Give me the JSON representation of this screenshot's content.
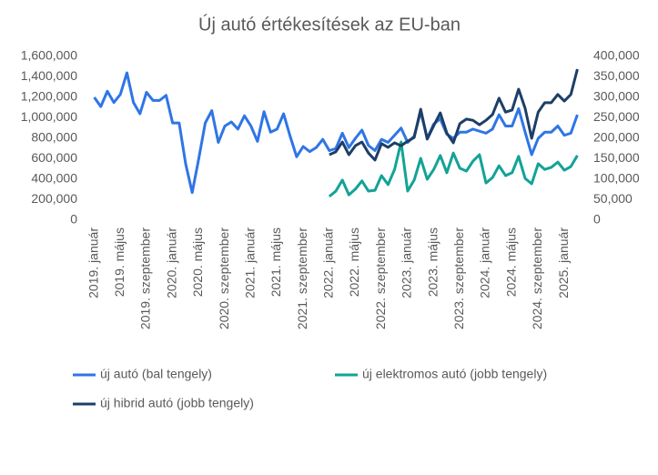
{
  "chart_data": {
    "type": "line",
    "title": "Új autó értékesítések az EU-ban",
    "categories": [
      "2019. január",
      null,
      null,
      null,
      "2019. május",
      null,
      null,
      null,
      "2019. szeptember",
      null,
      null,
      null,
      "2020. január",
      null,
      null,
      null,
      "2020. május",
      null,
      null,
      null,
      "2020. szeptember",
      null,
      null,
      null,
      "2021. január",
      null,
      null,
      null,
      "2021. május",
      null,
      null,
      null,
      "2021. szeptember",
      null,
      null,
      null,
      "2022. január",
      null,
      null,
      null,
      "2022. május",
      null,
      null,
      null,
      "2022. szeptember",
      null,
      null,
      null,
      "2023. január",
      null,
      null,
      null,
      "2023. május",
      null,
      null,
      null,
      "2023. szeptember",
      null,
      null,
      null,
      "2024. január",
      null,
      null,
      null,
      "2024. május",
      null,
      null,
      null,
      "2024. szeptember",
      null,
      null,
      null,
      "2025. január",
      null,
      null
    ],
    "series": [
      {
        "name": "új autó (bal tengely)",
        "color": "#2f75e6",
        "axis": "y",
        "values": [
          1200000,
          1110000,
          1260000,
          1150000,
          1230000,
          1440000,
          1150000,
          1040000,
          1250000,
          1170000,
          1170000,
          1220000,
          950000,
          950000,
          550000,
          270000,
          600000,
          950000,
          1070000,
          760000,
          920000,
          960000,
          890000,
          1020000,
          920000,
          770000,
          1060000,
          860000,
          890000,
          1040000,
          820000,
          620000,
          720000,
          670000,
          710000,
          790000,
          680000,
          700000,
          850000,
          710000,
          800000,
          880000,
          730000,
          680000,
          790000,
          760000,
          830000,
          900000,
          760000,
          820000,
          1060000,
          800000,
          940000,
          990000,
          840000,
          800000,
          860000,
          860000,
          890000,
          870000,
          850000,
          890000,
          1030000,
          920000,
          920000,
          1090000,
          860000,
          640000,
          800000,
          860000,
          860000,
          920000,
          830000,
          850000,
          1030000
        ]
      },
      {
        "name": "új elektromos autó (jobb tengely)",
        "color": "#12a396",
        "axis": "y2",
        "values": [
          null,
          null,
          null,
          null,
          null,
          null,
          null,
          null,
          null,
          null,
          null,
          null,
          null,
          null,
          null,
          null,
          null,
          null,
          null,
          null,
          null,
          null,
          null,
          null,
          null,
          null,
          null,
          null,
          null,
          null,
          null,
          null,
          null,
          null,
          null,
          null,
          58000,
          71000,
          98000,
          62000,
          76000,
          96000,
          71000,
          73000,
          109000,
          87000,
          124000,
          191000,
          71000,
          98000,
          151000,
          100000,
          124000,
          158000,
          116000,
          164000,
          127000,
          120000,
          144000,
          160000,
          91000,
          104000,
          133000,
          109000,
          116000,
          156000,
          102000,
          89000,
          138000,
          124000,
          129000,
          142000,
          122000,
          131000,
          158000
        ]
      },
      {
        "name": "új hibrid autó (jobb tengely)",
        "color": "#1d3f66",
        "axis": "y2",
        "values": [
          null,
          null,
          null,
          null,
          null,
          null,
          null,
          null,
          null,
          null,
          null,
          null,
          null,
          null,
          null,
          null,
          null,
          null,
          null,
          null,
          null,
          null,
          null,
          null,
          null,
          null,
          null,
          null,
          null,
          null,
          null,
          null,
          null,
          null,
          null,
          null,
          160000,
          167000,
          191000,
          160000,
          182000,
          191000,
          164000,
          147000,
          187000,
          178000,
          189000,
          182000,
          193000,
          202000,
          271000,
          198000,
          231000,
          262000,
          213000,
          189000,
          236000,
          247000,
          244000,
          233000,
          244000,
          258000,
          298000,
          264000,
          269000,
          320000,
          273000,
          200000,
          264000,
          287000,
          287000,
          307000,
          291000,
          307000,
          369000
        ]
      }
    ],
    "ylim": [
      0,
      1600000
    ],
    "yticks": [
      0,
      {
        "value": 200000,
        "label": "200,000"
      },
      {
        "value": 400000,
        "label": "400,000"
      },
      {
        "value": 600000,
        "label": "600,000"
      },
      {
        "value": 800000,
        "label": "800,000"
      },
      {
        "value": 1000000,
        "label": "1,000,000"
      },
      {
        "value": 1200000,
        "label": "1,200,000"
      },
      {
        "value": 1400000,
        "label": "1,400,000"
      },
      {
        "value": 1600000,
        "label": "1,600,000"
      }
    ],
    "y2lim": [
      0,
      400000
    ],
    "y2ticks": [
      0,
      {
        "value": 50000,
        "label": "50,000"
      },
      {
        "value": 100000,
        "label": "100,000"
      },
      {
        "value": 150000,
        "label": "150,000"
      },
      {
        "value": 200000,
        "label": "200,000"
      },
      {
        "value": 250000,
        "label": "250,000"
      },
      {
        "value": 300000,
        "label": "300,000"
      },
      {
        "value": 350000,
        "label": "350,000"
      },
      {
        "value": 400000,
        "label": "400,000"
      }
    ],
    "legend": "bottom"
  }
}
